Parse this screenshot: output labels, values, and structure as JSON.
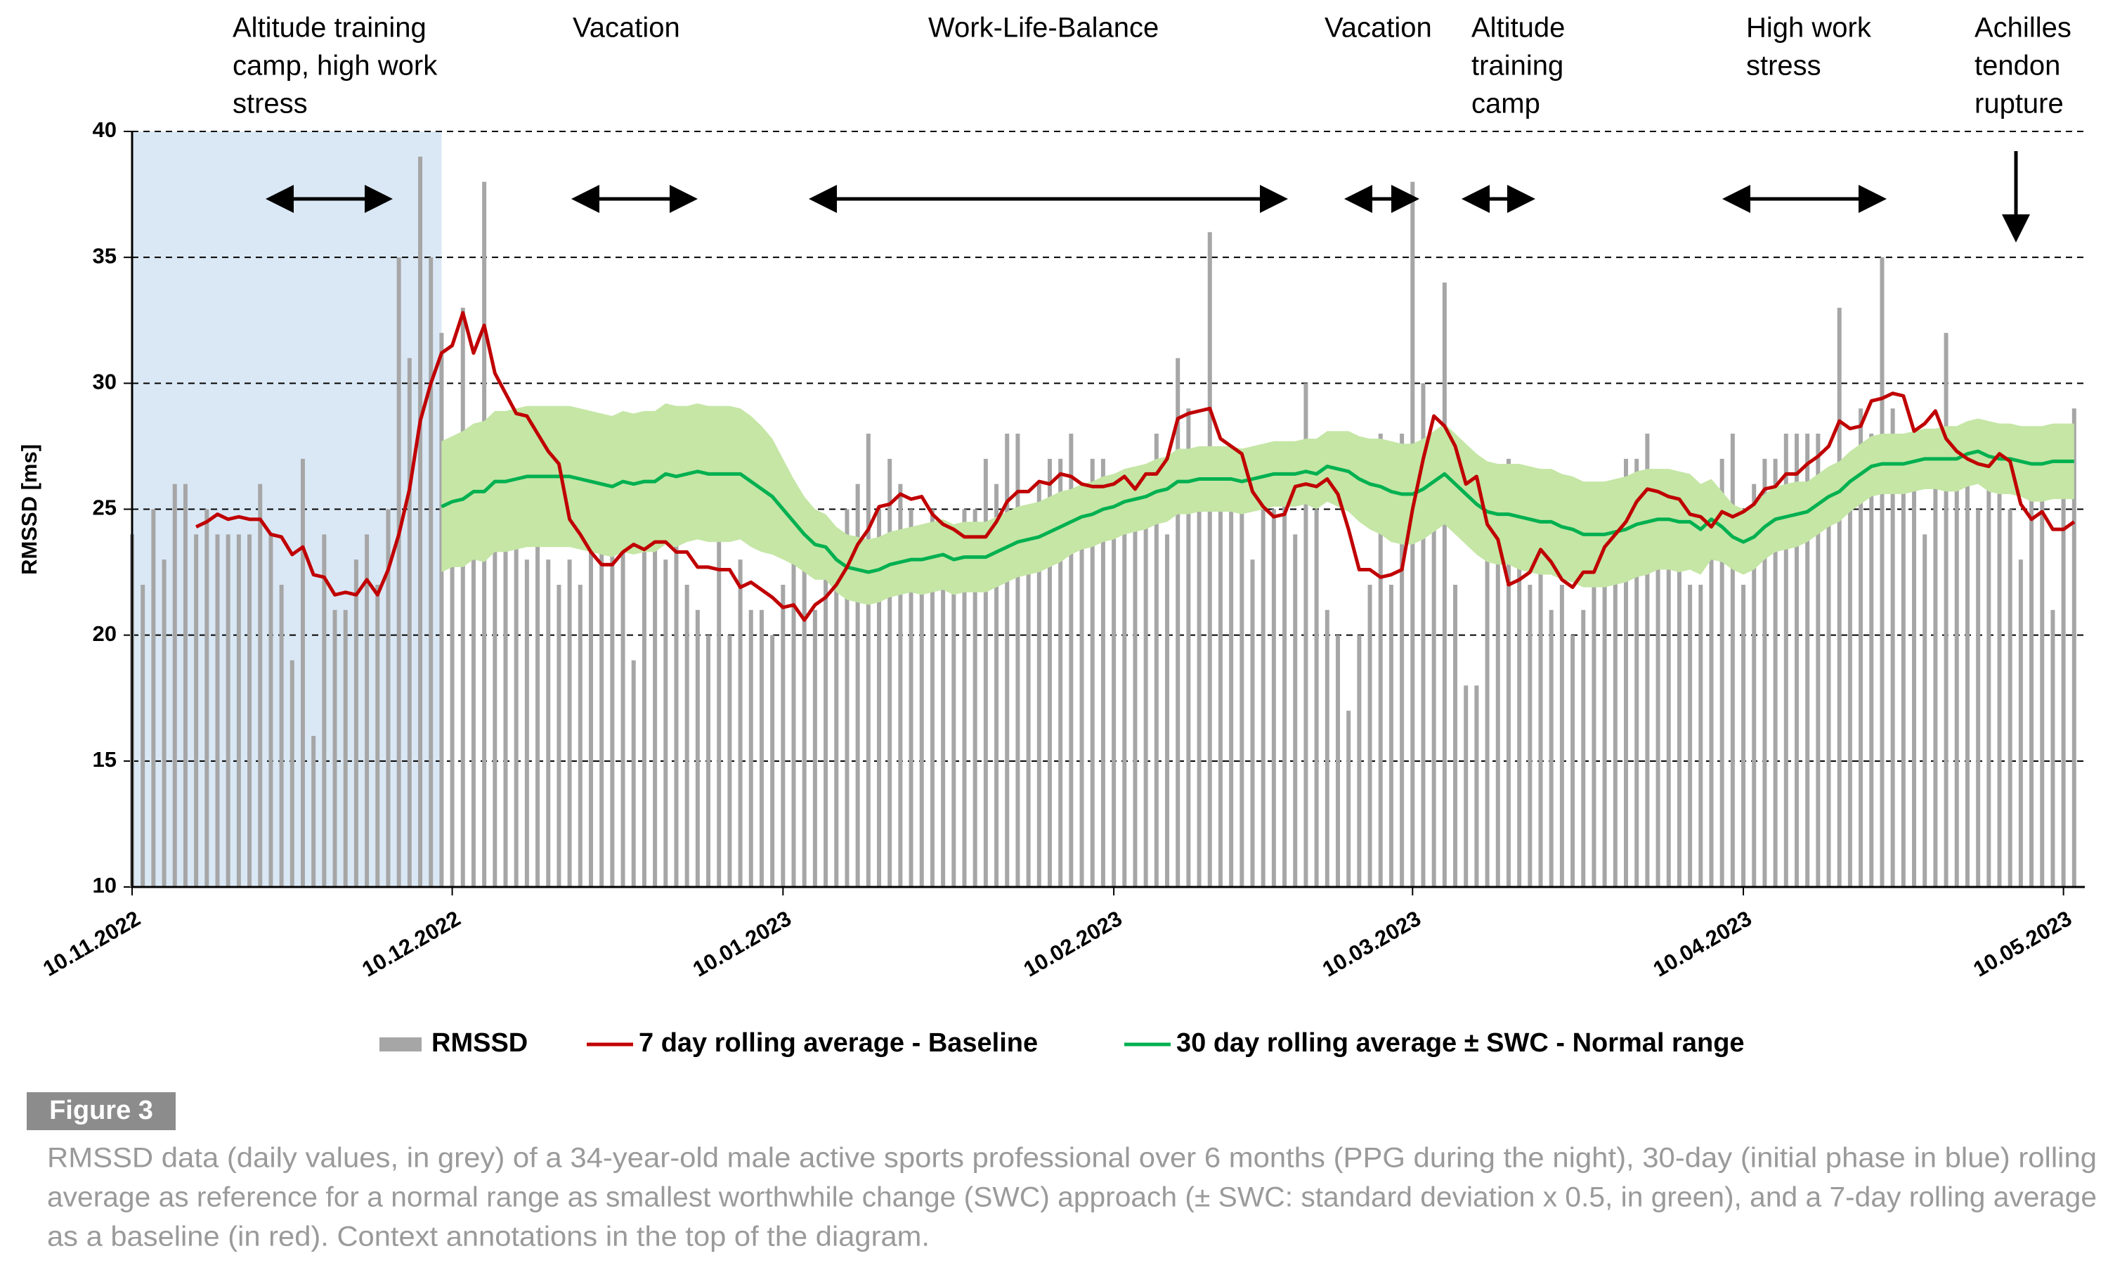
{
  "chart_data": {
    "type": "combo",
    "y_label": "RMSSD [ms]",
    "ylim": [
      10,
      40
    ],
    "yticks": [
      10,
      15,
      20,
      25,
      30,
      35,
      40
    ],
    "grid": true,
    "xlim": [
      "2022-11-10",
      "2023-05-12"
    ],
    "xticks": [
      {
        "value": "2022-11-10",
        "label": "10.11.2022"
      },
      {
        "value": "2022-12-10",
        "label": "10.12.2022"
      },
      {
        "value": "2023-01-10",
        "label": "10.01.2023"
      },
      {
        "value": "2023-02-10",
        "label": "10.02.2023"
      },
      {
        "value": "2023-03-10",
        "label": "10.03.2023"
      },
      {
        "value": "2023-04-10",
        "label": "10.04.2023"
      },
      {
        "value": "2023-05-10",
        "label": "10.05.2023"
      }
    ],
    "shaded_range": [
      "2022-11-10",
      "2022-12-09"
    ],
    "shaded_color": "#dae8f5",
    "legend": "bottom",
    "x": [
      "2022-11-10",
      "2022-11-11",
      "2022-11-12",
      "2022-11-13",
      "2022-11-14",
      "2022-11-15",
      "2022-11-16",
      "2022-11-17",
      "2022-11-18",
      "2022-11-19",
      "2022-11-20",
      "2022-11-21",
      "2022-11-22",
      "2022-11-23",
      "2022-11-24",
      "2022-11-25",
      "2022-11-26",
      "2022-11-27",
      "2022-11-28",
      "2022-11-29",
      "2022-11-30",
      "2022-12-01",
      "2022-12-02",
      "2022-12-03",
      "2022-12-04",
      "2022-12-05",
      "2022-12-06",
      "2022-12-07",
      "2022-12-08",
      "2022-12-09",
      "2022-12-10",
      "2022-12-11",
      "2022-12-12",
      "2022-12-13",
      "2022-12-14",
      "2022-12-15",
      "2022-12-16",
      "2022-12-17",
      "2022-12-18",
      "2022-12-19",
      "2022-12-20",
      "2022-12-21",
      "2022-12-22",
      "2022-12-23",
      "2022-12-24",
      "2022-12-25",
      "2022-12-26",
      "2022-12-27",
      "2022-12-28",
      "2022-12-29",
      "2022-12-30",
      "2022-12-31",
      "2023-01-01",
      "2023-01-02",
      "2023-01-03",
      "2023-01-04",
      "2023-01-05",
      "2023-01-06",
      "2023-01-07",
      "2023-01-08",
      "2023-01-09",
      "2023-01-10",
      "2023-01-11",
      "2023-01-12",
      "2023-01-13",
      "2023-01-14",
      "2023-01-15",
      "2023-01-16",
      "2023-01-17",
      "2023-01-18",
      "2023-01-19",
      "2023-01-20",
      "2023-01-21",
      "2023-01-22",
      "2023-01-23",
      "2023-01-24",
      "2023-01-25",
      "2023-01-26",
      "2023-01-27",
      "2023-01-28",
      "2023-01-29",
      "2023-01-30",
      "2023-01-31",
      "2023-02-01",
      "2023-02-02",
      "2023-02-03",
      "2023-02-04",
      "2023-02-05",
      "2023-02-06",
      "2023-02-07",
      "2023-02-08",
      "2023-02-09",
      "2023-02-10",
      "2023-02-11",
      "2023-02-12",
      "2023-02-13",
      "2023-02-14",
      "2023-02-15",
      "2023-02-16",
      "2023-02-17",
      "2023-02-18",
      "2023-02-19",
      "2023-02-20",
      "2023-02-21",
      "2023-02-22",
      "2023-02-23",
      "2023-02-24",
      "2023-02-25",
      "2023-02-26",
      "2023-02-27",
      "2023-02-28",
      "2023-03-01",
      "2023-03-02",
      "2023-03-03",
      "2023-03-04",
      "2023-03-05",
      "2023-03-06",
      "2023-03-07",
      "2023-03-08",
      "2023-03-09",
      "2023-03-10",
      "2023-03-11",
      "2023-03-12",
      "2023-03-13",
      "2023-03-14",
      "2023-03-15",
      "2023-03-16",
      "2023-03-17",
      "2023-03-18",
      "2023-03-19",
      "2023-03-20",
      "2023-03-21",
      "2023-03-22",
      "2023-03-23",
      "2023-03-24",
      "2023-03-25",
      "2023-03-26",
      "2023-03-27",
      "2023-03-28",
      "2023-03-29",
      "2023-03-30",
      "2023-03-31",
      "2023-04-01",
      "2023-04-02",
      "2023-04-03",
      "2023-04-04",
      "2023-04-05",
      "2023-04-06",
      "2023-04-07",
      "2023-04-08",
      "2023-04-09",
      "2023-04-10",
      "2023-04-11",
      "2023-04-12",
      "2023-04-13",
      "2023-04-14",
      "2023-04-15",
      "2023-04-16",
      "2023-04-17",
      "2023-04-18",
      "2023-04-19",
      "2023-04-20",
      "2023-04-21",
      "2023-04-22",
      "2023-04-23",
      "2023-04-24",
      "2023-04-25",
      "2023-04-26",
      "2023-04-27",
      "2023-04-28",
      "2023-04-29",
      "2023-04-30",
      "2023-05-01",
      "2023-05-02",
      "2023-05-03",
      "2023-05-04",
      "2023-05-05",
      "2023-05-06",
      "2023-05-07",
      "2023-05-08",
      "2023-05-09",
      "2023-05-10",
      "2023-05-11"
    ],
    "series": [
      {
        "name": "RMSSD",
        "type": "bar",
        "color": "#a6a6a6",
        "values": [
          24,
          22,
          25,
          23,
          26,
          26,
          24,
          25,
          24,
          24,
          24,
          24,
          26,
          24,
          22,
          19,
          27,
          16,
          24,
          21,
          21,
          23,
          24,
          22,
          25,
          35,
          31,
          39,
          35,
          32,
          24,
          33,
          25,
          38,
          26,
          25,
          29,
          23,
          26,
          23,
          22,
          23,
          22,
          24,
          25,
          24,
          24,
          19,
          25,
          24,
          23,
          24,
          22,
          21,
          20,
          24,
          20,
          23,
          21,
          21,
          20,
          22,
          24,
          25,
          21,
          23,
          24,
          25,
          26,
          28,
          25,
          27,
          26,
          25,
          24,
          25,
          24,
          24,
          25,
          25,
          27,
          26,
          28,
          28,
          25,
          26,
          27,
          27,
          28,
          26,
          27,
          27,
          26,
          26,
          25,
          26,
          28,
          24,
          31,
          29,
          25,
          36,
          27,
          26,
          25,
          23,
          26,
          25,
          26,
          24,
          30,
          25,
          21,
          20,
          17,
          20,
          22,
          28,
          22,
          28,
          38,
          30,
          25,
          34,
          22,
          18,
          18,
          23,
          25,
          27,
          24,
          22,
          23,
          21,
          22,
          20,
          21,
          25,
          26,
          23,
          27,
          27,
          28,
          23,
          25,
          26,
          22,
          22,
          24,
          27,
          28,
          22,
          26,
          27,
          27,
          28,
          28,
          28,
          28,
          25,
          33,
          27,
          29,
          28,
          35,
          29,
          26,
          27,
          24,
          28,
          32,
          27,
          26,
          25,
          27,
          26,
          25,
          23,
          27,
          26,
          21,
          26,
          29
        ]
      },
      {
        "name": "7 day rolling average - Baseline",
        "type": "line",
        "color": "#c00000",
        "values": [
          null,
          null,
          null,
          null,
          null,
          null,
          24.3,
          24.5,
          24.8,
          24.6,
          24.7,
          24.6,
          24.6,
          24.0,
          23.9,
          23.2,
          23.5,
          22.4,
          22.3,
          21.6,
          21.7,
          21.6,
          22.2,
          21.6,
          22.6,
          24.0,
          25.8,
          28.5,
          30.0,
          31.2,
          31.5,
          32.8,
          31.2,
          32.3,
          30.4,
          29.6,
          28.8,
          28.7,
          28.0,
          27.3,
          26.8,
          24.6,
          24.0,
          23.3,
          22.8,
          22.8,
          23.3,
          23.6,
          23.4,
          23.7,
          23.7,
          23.3,
          23.3,
          22.7,
          22.7,
          22.6,
          22.6,
          21.9,
          22.1,
          21.8,
          21.5,
          21.1,
          21.2,
          20.6,
          21.2,
          21.5,
          22.0,
          22.7,
          23.6,
          24.2,
          25.1,
          25.2,
          25.6,
          25.4,
          25.5,
          24.8,
          24.4,
          24.2,
          23.9,
          23.9,
          23.9,
          24.5,
          25.3,
          25.7,
          25.7,
          26.1,
          26.0,
          26.4,
          26.3,
          26.0,
          25.9,
          25.9,
          26.0,
          26.3,
          25.8,
          26.4,
          26.4,
          27.0,
          28.6,
          28.8,
          28.9,
          29.0,
          27.8,
          27.5,
          27.2,
          25.7,
          25.1,
          24.7,
          24.8,
          25.9,
          26.0,
          25.9,
          26.2,
          25.6,
          24.2,
          22.6,
          22.6,
          22.3,
          22.4,
          22.6,
          25.0,
          27.0,
          28.7,
          28.3,
          27.5,
          26.0,
          26.3,
          24.4,
          23.8,
          22.0,
          22.2,
          22.5,
          23.4,
          22.9,
          22.2,
          21.9,
          22.5,
          22.5,
          23.5,
          24.0,
          24.5,
          25.3,
          25.8,
          25.7,
          25.5,
          25.4,
          24.8,
          24.7,
          24.3,
          24.9,
          24.7,
          24.9,
          25.2,
          25.8,
          25.9,
          26.4,
          26.4,
          26.8,
          27.1,
          27.5,
          28.5,
          28.2,
          28.3,
          29.3,
          29.4,
          29.6,
          29.5,
          28.1,
          28.4,
          28.9,
          27.8,
          27.3,
          27.0,
          26.8,
          26.7,
          27.2,
          26.9,
          25.2,
          24.6,
          24.9,
          24.2,
          24.2,
          24.5
        ]
      },
      {
        "name": "30 day rolling average ± SWC - Normal range",
        "type": "band_line",
        "color": "#00b050",
        "band_color": "#c5e6a5",
        "values": [
          null,
          null,
          null,
          null,
          null,
          null,
          null,
          null,
          null,
          null,
          null,
          null,
          null,
          null,
          null,
          null,
          null,
          null,
          null,
          null,
          null,
          null,
          null,
          null,
          null,
          null,
          null,
          null,
          null,
          25.1,
          25.3,
          25.4,
          25.7,
          25.7,
          26.1,
          26.1,
          26.2,
          26.3,
          26.3,
          26.3,
          26.3,
          26.3,
          26.2,
          26.1,
          26.0,
          25.9,
          26.1,
          26.0,
          26.1,
          26.1,
          26.4,
          26.3,
          26.4,
          26.5,
          26.4,
          26.4,
          26.4,
          26.4,
          26.1,
          25.8,
          25.5,
          25.0,
          24.5,
          24.0,
          23.6,
          23.5,
          23.0,
          22.7,
          22.6,
          22.5,
          22.6,
          22.8,
          22.9,
          23.0,
          23.0,
          23.1,
          23.2,
          23.0,
          23.1,
          23.1,
          23.1,
          23.3,
          23.5,
          23.7,
          23.8,
          23.9,
          24.1,
          24.3,
          24.5,
          24.7,
          24.8,
          25.0,
          25.1,
          25.3,
          25.4,
          25.5,
          25.7,
          25.8,
          26.1,
          26.1,
          26.2,
          26.2,
          26.2,
          26.2,
          26.1,
          26.2,
          26.3,
          26.4,
          26.4,
          26.4,
          26.5,
          26.4,
          26.7,
          26.6,
          26.5,
          26.2,
          26.0,
          25.9,
          25.7,
          25.6,
          25.6,
          25.8,
          26.1,
          26.4,
          26.0,
          25.6,
          25.2,
          24.9,
          24.8,
          24.8,
          24.7,
          24.6,
          24.5,
          24.5,
          24.3,
          24.2,
          24.0,
          24.0,
          24.0,
          24.1,
          24.2,
          24.4,
          24.5,
          24.6,
          24.6,
          24.5,
          24.5,
          24.2,
          24.6,
          24.3,
          23.9,
          23.7,
          23.9,
          24.3,
          24.6,
          24.7,
          24.8,
          24.9,
          25.2,
          25.5,
          25.7,
          26.1,
          26.4,
          26.7,
          26.8,
          26.8,
          26.8,
          26.9,
          27.0,
          27.0,
          27.0,
          27.0,
          27.2,
          27.3,
          27.1,
          27.0,
          27.0,
          26.9,
          26.8,
          26.8,
          26.9,
          26.9,
          26.9
        ],
        "swc": [
          null,
          null,
          null,
          null,
          null,
          null,
          null,
          null,
          null,
          null,
          null,
          null,
          null,
          null,
          null,
          null,
          null,
          null,
          null,
          null,
          null,
          null,
          null,
          null,
          null,
          null,
          null,
          null,
          null,
          2.6,
          2.6,
          2.7,
          2.7,
          2.8,
          2.8,
          2.8,
          2.8,
          2.8,
          2.8,
          2.8,
          2.8,
          2.8,
          2.8,
          2.8,
          2.8,
          2.8,
          2.8,
          2.8,
          2.8,
          2.8,
          2.8,
          2.8,
          2.7,
          2.7,
          2.7,
          2.7,
          2.7,
          2.6,
          2.6,
          2.5,
          2.3,
          2.0,
          1.7,
          1.5,
          1.4,
          1.3,
          1.3,
          1.3,
          1.3,
          1.3,
          1.3,
          1.3,
          1.3,
          1.3,
          1.4,
          1.4,
          1.4,
          1.4,
          1.4,
          1.4,
          1.4,
          1.4,
          1.4,
          1.4,
          1.4,
          1.4,
          1.4,
          1.4,
          1.3,
          1.3,
          1.3,
          1.3,
          1.3,
          1.3,
          1.3,
          1.3,
          1.3,
          1.3,
          1.3,
          1.3,
          1.3,
          1.3,
          1.3,
          1.3,
          1.3,
          1.3,
          1.3,
          1.3,
          1.3,
          1.3,
          1.3,
          1.4,
          1.4,
          1.5,
          1.6,
          1.7,
          1.8,
          1.9,
          2.0,
          2.0,
          2.0,
          2.0,
          2.0,
          2.0,
          2.0,
          2.0,
          2.0,
          2.0,
          2.0,
          2.0,
          2.1,
          2.1,
          2.1,
          2.1,
          2.1,
          2.1,
          2.1,
          2.1,
          2.1,
          2.1,
          2.1,
          2.1,
          2.1,
          2.0,
          2.0,
          2.0,
          1.9,
          1.8,
          1.6,
          1.4,
          1.3,
          1.3,
          1.3,
          1.3,
          1.3,
          1.3,
          1.3,
          1.2,
          1.2,
          1.2,
          1.2,
          1.2,
          1.2,
          1.2,
          1.2,
          1.2,
          1.2,
          1.2,
          1.2,
          1.2,
          1.3,
          1.3,
          1.3,
          1.3,
          1.4,
          1.4,
          1.4,
          1.4,
          1.5,
          1.5,
          1.5,
          1.5,
          1.5
        ]
      }
    ],
    "annotations": [
      {
        "lines": [
          "Altitude training",
          "camp, high work",
          "stress"
        ]
      },
      {
        "lines": [
          "Vacation"
        ]
      },
      {
        "lines": [
          "Work-Life-Balance"
        ]
      },
      {
        "lines": [
          "Vacation"
        ]
      },
      {
        "lines": [
          "Altitude",
          "training",
          "camp"
        ]
      },
      {
        "lines": [
          "High work",
          "stress"
        ]
      },
      {
        "lines": [
          "Achilles",
          "tendon",
          "rupture"
        ]
      }
    ]
  },
  "figure": {
    "label": "Figure 3",
    "caption": [
      "RMSSD data (daily values, in grey) of a 34-year-old male active sports professional over 6 months (PPG during the night), 30-day (initial phase in blue) rolling",
      "average as reference for a normal range as smallest worthwhile change (SWC) approach (± SWC: standard deviation x 0.5, in green), and a 7-day rolling average",
      "as a baseline (in red). Context annotations in the top of the diagram."
    ]
  }
}
